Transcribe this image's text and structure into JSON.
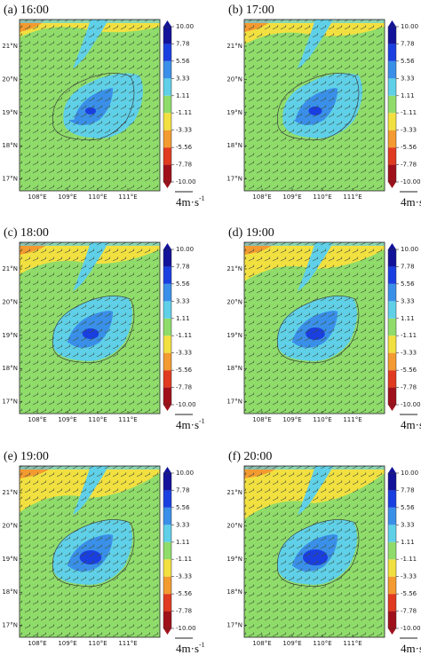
{
  "panels": [
    {
      "label": "(a) 16:00"
    },
    {
      "label": "(b) 17:00"
    },
    {
      "label": "(c) 18:00"
    },
    {
      "label": "(d) 19:00"
    },
    {
      "label": "(e) 19:00"
    },
    {
      "label": "(f) 20:00"
    }
  ],
  "lat_labels": [
    "21°N",
    "20°N",
    "19°N",
    "18°N",
    "17°N"
  ],
  "lon_labels": [
    "108°E",
    "109°E",
    "110°E",
    "111°E"
  ],
  "colorbar": {
    "ticks": [
      {
        "value": 10,
        "label": "10.00"
      },
      7.78,
      5.56,
      3.33,
      1.11,
      -1.11,
      -3.33,
      -5.56,
      -7.78,
      {
        "value": -10,
        "label": "-10.00"
      }
    ],
    "colors": [
      "#a0101a",
      "#e03a20",
      "#f39a30",
      "#f2e040",
      "#8fdc6a",
      "#5fd0e8",
      "#3a90e8",
      "#1a3fe0",
      "#12129a"
    ]
  },
  "scale_label": "4m·s",
  "scale_exponent": "-1"
}
